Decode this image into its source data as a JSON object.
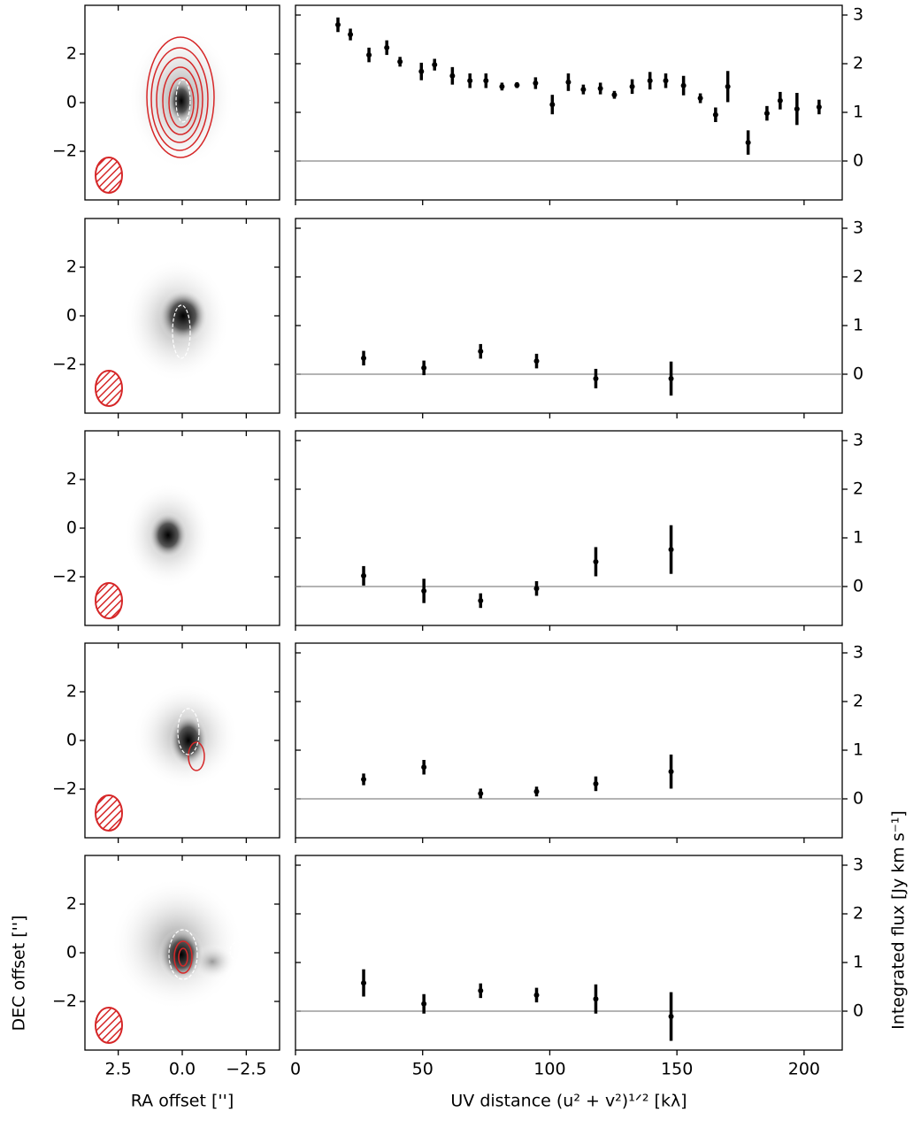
{
  "chart_data": [
    {
      "type": "image",
      "xlim": [
        3.8,
        -3.8
      ],
      "ylim": [
        -4,
        4
      ],
      "xticks": [
        2.5,
        {
          "value": 0,
          "label": "0.0"
        },
        {
          "value": -2.5,
          "label": "−2.5"
        }
      ],
      "yticks": [
        {
          "value": -2,
          "label": "−2"
        },
        0,
        2
      ],
      "contour_color": "#d62728"
    },
    {
      "type": "errorbar",
      "color": "#000000",
      "xlim": [
        0,
        215
      ],
      "ylim": [
        -0.8,
        3.2
      ],
      "xticks": [
        0,
        50,
        100,
        150,
        200
      ],
      "yticks": [
        0,
        1,
        2,
        3
      ],
      "hline": 0,
      "x": [
        16.7,
        21.6,
        28.9,
        35.9,
        41.1,
        49.5,
        54.7,
        61.7,
        68.6,
        74.9,
        81.2,
        87.1,
        94.4,
        101,
        107.3,
        113.2,
        119.9,
        125.4,
        132.4,
        139.4,
        145.6,
        152.6,
        159.2,
        165.2,
        170,
        178,
        185.4,
        190.6,
        197.2,
        205.9
      ],
      "values": [
        2.8,
        2.6,
        2.18,
        2.33,
        2.04,
        1.84,
        1.98,
        1.75,
        1.65,
        1.65,
        1.53,
        1.56,
        1.6,
        1.16,
        1.62,
        1.47,
        1.49,
        1.36,
        1.53,
        1.65,
        1.65,
        1.55,
        1.29,
        0.95,
        1.53,
        0.38,
        0.98,
        1.24,
        1.07,
        1.11
      ],
      "errors": [
        0.15,
        0.12,
        0.15,
        0.15,
        0.1,
        0.18,
        0.12,
        0.18,
        0.15,
        0.15,
        0.08,
        0.06,
        0.12,
        0.2,
        0.18,
        0.1,
        0.12,
        0.08,
        0.15,
        0.18,
        0.15,
        0.2,
        0.1,
        0.15,
        0.32,
        0.25,
        0.15,
        0.18,
        0.33,
        0.15
      ]
    },
    {
      "type": "image",
      "xlim": [
        3.8,
        -3.8
      ],
      "ylim": [
        -4,
        4
      ],
      "xticks": [
        2.5,
        {
          "value": 0,
          "label": "0.0"
        },
        {
          "value": -2.5,
          "label": "−2.5"
        }
      ],
      "yticks": [
        {
          "value": -2,
          "label": "−2"
        },
        0,
        2
      ],
      "contour_color": "#d62728"
    },
    {
      "type": "errorbar",
      "color": "#000000",
      "xlim": [
        0,
        215
      ],
      "ylim": [
        -0.8,
        3.2
      ],
      "xticks": [
        0,
        50,
        100,
        150,
        200
      ],
      "yticks": [
        0,
        1,
        2,
        3
      ],
      "hline": 0,
      "x": [
        26.8,
        50.5,
        72.8,
        94.8,
        118.1,
        147.7
      ],
      "values": [
        0.33,
        0.13,
        0.47,
        0.27,
        -0.09,
        -0.09
      ],
      "errors": [
        0.15,
        0.15,
        0.15,
        0.15,
        0.2,
        0.35
      ]
    },
    {
      "type": "image",
      "xlim": [
        3.8,
        -3.8
      ],
      "ylim": [
        -4,
        4
      ],
      "xticks": [
        2.5,
        {
          "value": 0,
          "label": "0.0"
        },
        {
          "value": -2.5,
          "label": "−2.5"
        }
      ],
      "yticks": [
        {
          "value": -2,
          "label": "−2"
        },
        0,
        2
      ],
      "contour_color": "#d62728"
    },
    {
      "type": "errorbar",
      "color": "#000000",
      "xlim": [
        0,
        215
      ],
      "ylim": [
        -0.8,
        3.2
      ],
      "xticks": [
        0,
        50,
        100,
        150,
        200
      ],
      "yticks": [
        0,
        1,
        2,
        3
      ],
      "hline": 0,
      "x": [
        26.8,
        50.5,
        72.8,
        94.8,
        118.1,
        147.7
      ],
      "values": [
        0.22,
        -0.09,
        -0.29,
        -0.04,
        0.51,
        0.76
      ],
      "errors": [
        0.2,
        0.25,
        0.15,
        0.15,
        0.3,
        0.5
      ]
    },
    {
      "type": "image",
      "xlim": [
        3.8,
        -3.8
      ],
      "ylim": [
        -4,
        4
      ],
      "xticks": [
        2.5,
        {
          "value": 0,
          "label": "0.0"
        },
        {
          "value": -2.5,
          "label": "−2.5"
        }
      ],
      "yticks": [
        {
          "value": -2,
          "label": "−2"
        },
        0,
        2
      ],
      "contour_color": "#d62728"
    },
    {
      "type": "errorbar",
      "color": "#000000",
      "xlim": [
        0,
        215
      ],
      "ylim": [
        -0.8,
        3.2
      ],
      "xticks": [
        0,
        50,
        100,
        150,
        200
      ],
      "yticks": [
        0,
        1,
        2,
        3
      ],
      "hline": 0,
      "x": [
        26.8,
        50.5,
        72.8,
        94.8,
        118.1,
        147.7
      ],
      "values": [
        0.4,
        0.65,
        0.11,
        0.15,
        0.31,
        0.56
      ],
      "errors": [
        0.12,
        0.15,
        0.1,
        0.1,
        0.15,
        0.35
      ]
    },
    {
      "type": "image",
      "xlim": [
        3.8,
        -3.8
      ],
      "ylim": [
        -4,
        4
      ],
      "xticks": [
        2.5,
        {
          "value": 0,
          "label": "0.0"
        },
        {
          "value": -2.5,
          "label": "−2.5"
        }
      ],
      "yticks": [
        {
          "value": -2,
          "label": "−2"
        },
        0,
        2
      ],
      "contour_color": "#d62728",
      "xlabel": "RA offset ['']",
      "ylabel": "DEC offset ['']"
    },
    {
      "type": "errorbar",
      "color": "#000000",
      "xlim": [
        0,
        215
      ],
      "ylim": [
        -0.8,
        3.2
      ],
      "xticks": [
        0,
        50,
        100,
        150,
        200
      ],
      "yticks": [
        0,
        1,
        2,
        3
      ],
      "hline": 0,
      "x": [
        26.8,
        50.5,
        72.8,
        94.8,
        118.1,
        147.7
      ],
      "values": [
        0.58,
        0.15,
        0.42,
        0.33,
        0.25,
        -0.11
      ],
      "errors": [
        0.28,
        0.2,
        0.15,
        0.15,
        0.3,
        0.5
      ],
      "xlabel": "UV distance (u² + v²)¹ᐟ² [kλ]",
      "ylabel": "Integrated flux [Jy km s⁻¹]"
    }
  ]
}
